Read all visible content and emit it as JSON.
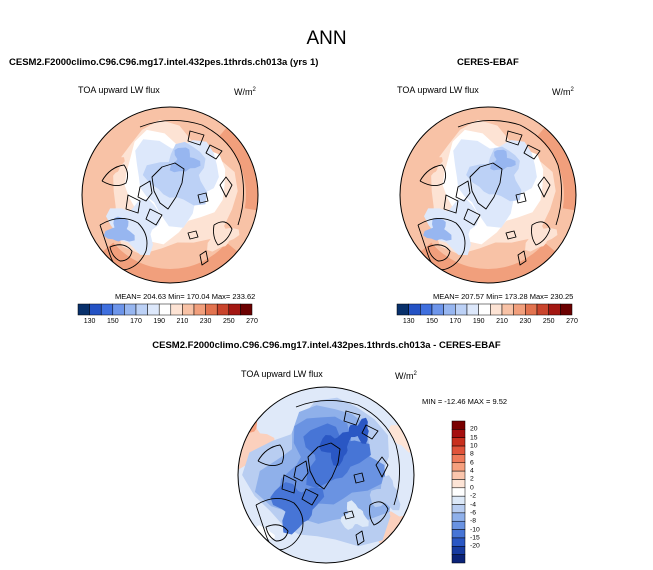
{
  "title": "ANN",
  "panels": [
    {
      "case_title": "CESM2.F2000climo.C96.C96.mg17.intel.432pes.1thrds.ch013a (yrs 1)",
      "field": "TOA upward LW flux",
      "units_base": "W/m",
      "units_exp": "2",
      "stats": "MEAN= 204.63  Min= 170.04  Max= 233.62"
    },
    {
      "case_title": "CERES-EBAF",
      "field": "TOA upward LW flux",
      "units_base": "W/m",
      "units_exp": "2",
      "stats": "MEAN= 207.57  Min= 173.28  Max= 230.25"
    },
    {
      "case_title": "CESM2.F2000climo.C96.C96.mg17.intel.432pes.1thrds.ch013a - CERES-EBAF",
      "field": "TOA upward LW flux",
      "units_base": "W/m",
      "units_exp": "2",
      "stats": "MIN = -12.46 MAX =   9.52"
    }
  ],
  "chart_data": [
    {
      "type": "heatmap",
      "name": "model",
      "projection": "north-polar-stereographic",
      "colorbar": {
        "orientation": "horizontal",
        "ticks": [
          "130",
          "150",
          "170",
          "190",
          "210",
          "230",
          "250",
          "270"
        ],
        "colors": [
          "#08306b",
          "#2452c4",
          "#3f6fde",
          "#6d95ea",
          "#97b6f0",
          "#bcd1f6",
          "#dde8fb",
          "#ffffff",
          "#fde3d4",
          "#f8c2a6",
          "#f19f7c",
          "#e2734f",
          "#c9442c",
          "#a31712",
          "#6b0000"
        ]
      }
    },
    {
      "type": "heatmap",
      "name": "obs",
      "projection": "north-polar-stereographic",
      "colorbar": {
        "orientation": "horizontal",
        "ticks": [
          "130",
          "150",
          "170",
          "190",
          "210",
          "230",
          "250",
          "270"
        ],
        "colors": [
          "#08306b",
          "#2452c4",
          "#3f6fde",
          "#6d95ea",
          "#97b6f0",
          "#bcd1f6",
          "#dde8fb",
          "#ffffff",
          "#fde3d4",
          "#f8c2a6",
          "#f19f7c",
          "#e2734f",
          "#c9442c",
          "#a31712",
          "#6b0000"
        ]
      }
    },
    {
      "type": "heatmap",
      "name": "difference",
      "projection": "north-polar-stereographic",
      "colorbar": {
        "orientation": "vertical",
        "ticks": [
          "20",
          "15",
          "10",
          "8",
          "6",
          "4",
          "2",
          "0",
          "-2",
          "-4",
          "-6",
          "-8",
          "-10",
          "-15",
          "-20"
        ],
        "colors": [
          "#790000",
          "#a50f0f",
          "#c8301e",
          "#e0533a",
          "#ef7a5a",
          "#f6a07e",
          "#fbc6ad",
          "#fde4d6",
          "#ffffff",
          "#dde9f8",
          "#b8cdf1",
          "#8fb0ea",
          "#6a93e2",
          "#4775d6",
          "#2a57c4",
          "#173ba0",
          "#0b2378"
        ]
      }
    }
  ]
}
